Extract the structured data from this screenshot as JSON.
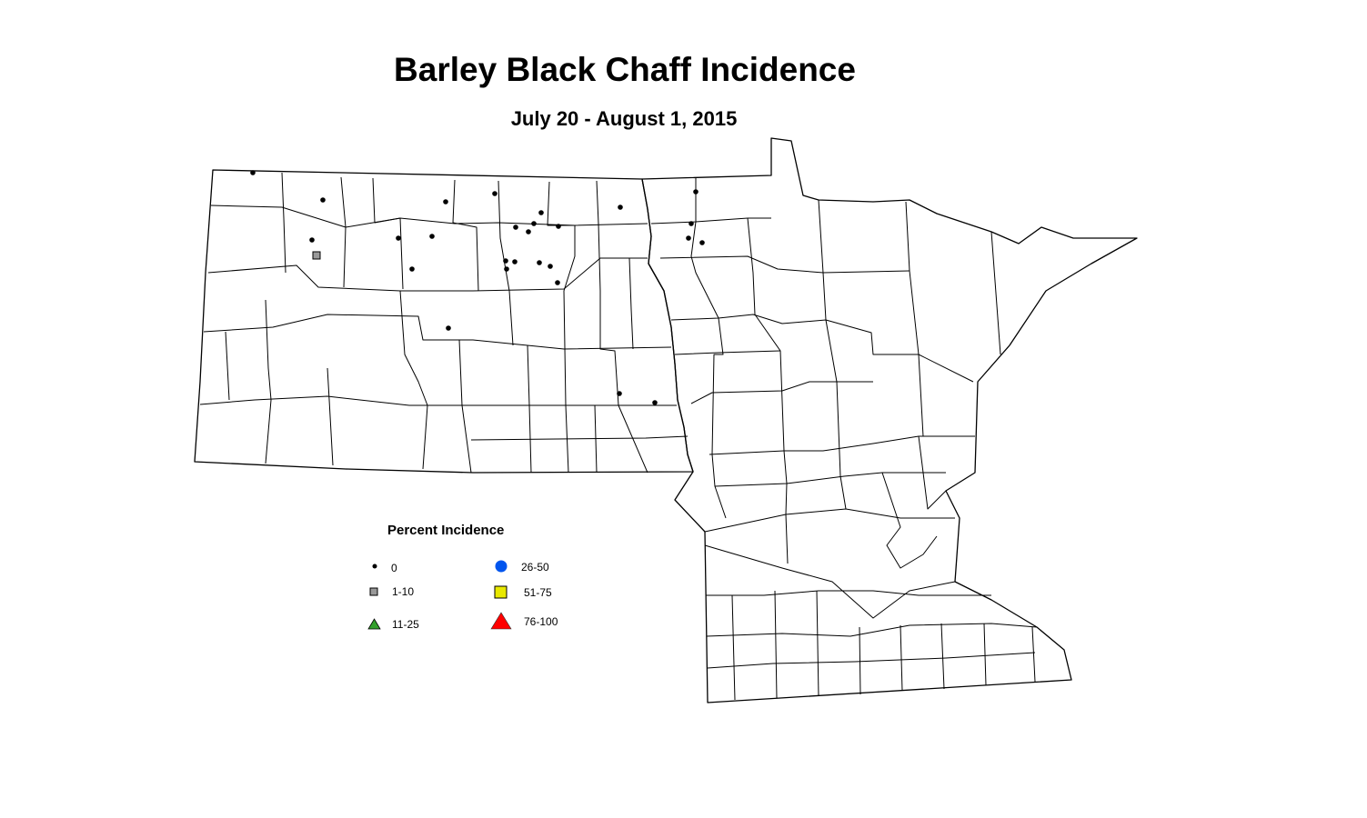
{
  "title": "Barley Black Chaff Incidence",
  "subtitle": "July 20 - August 1, 2015",
  "legend": {
    "title": "Percent Incidence",
    "items": [
      {
        "label": "0",
        "symbol": "small-dot",
        "color": "#000000"
      },
      {
        "label": "1-10",
        "symbol": "square",
        "color": "#999999"
      },
      {
        "label": "11-25",
        "symbol": "triangle",
        "color": "#33a02c"
      },
      {
        "label": "26-50",
        "symbol": "circle",
        "color": "#0055ee"
      },
      {
        "label": "51-75",
        "symbol": "square",
        "color": "#e8e800"
      },
      {
        "label": "76-100",
        "symbol": "triangle",
        "color": "#ff0000"
      }
    ]
  },
  "observations": [
    {
      "category": "0"
    },
    {
      "category": "0"
    },
    {
      "category": "0"
    },
    {
      "category": "1-10"
    },
    {
      "category": "0"
    },
    {
      "category": "0"
    },
    {
      "category": "0"
    },
    {
      "category": "0"
    },
    {
      "category": "0"
    },
    {
      "category": "0"
    },
    {
      "category": "0"
    },
    {
      "category": "0"
    },
    {
      "category": "0"
    },
    {
      "category": "0"
    },
    {
      "category": "0"
    },
    {
      "category": "0"
    },
    {
      "category": "0"
    },
    {
      "category": "0"
    },
    {
      "category": "0"
    },
    {
      "category": "0"
    },
    {
      "category": "0"
    },
    {
      "category": "0"
    },
    {
      "category": "0"
    },
    {
      "category": "0"
    },
    {
      "category": "0"
    },
    {
      "category": "0"
    },
    {
      "category": "0"
    },
    {
      "category": "0"
    }
  ]
}
